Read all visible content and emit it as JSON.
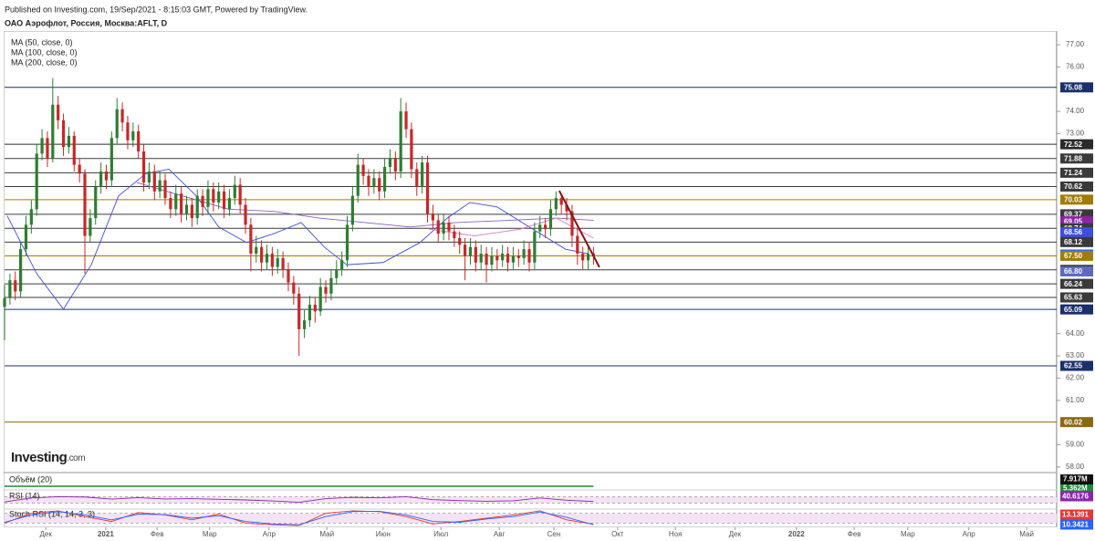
{
  "chart_data": {
    "type": "candlestick",
    "source": "Published on Investing.com, 19/Sep/2021 - 8:15:03 GMT, Powered by TradingView.",
    "title": "ОАО Аэрофлот, Россия, Москва:AFLT, D",
    "watermark": [
      "Investing",
      ".com"
    ],
    "xlim": [
      0,
      196
    ],
    "ylim": [
      57.79,
      77.37
    ],
    "xticks": [
      {
        "value": 7.7,
        "label": "Дек"
      },
      {
        "value": 18.9,
        "label": "2021",
        "bold": true
      },
      {
        "value": 28.5,
        "label": "Фев"
      },
      {
        "value": 38.3,
        "label": "Мар"
      },
      {
        "value": 49.4,
        "label": "Апр"
      },
      {
        "value": 60.2,
        "label": "Май"
      },
      {
        "value": 70.7,
        "label": "Июн"
      },
      {
        "value": 81.5,
        "label": "Июл"
      },
      {
        "value": 92.4,
        "label": "Авг"
      },
      {
        "value": 102.6,
        "label": "Сен"
      },
      {
        "value": 114.5,
        "label": "Окт"
      },
      {
        "value": 125.3,
        "label": "Ноя"
      },
      {
        "value": 136.4,
        "label": "Дек"
      },
      {
        "value": 147.9,
        "label": "2022",
        "bold": true
      },
      {
        "value": 158.7,
        "label": "Фев"
      },
      {
        "value": 168.7,
        "label": "Мар"
      },
      {
        "value": 180.1,
        "label": "Апр"
      },
      {
        "value": 190.9,
        "label": "Май"
      }
    ],
    "yticks": [
      {
        "value": 77,
        "label": "77.00"
      },
      {
        "value": 76,
        "label": "76.00"
      },
      {
        "value": 74,
        "label": "74.00"
      },
      {
        "value": 73,
        "label": "73.00"
      },
      {
        "value": 64,
        "label": "64.00"
      },
      {
        "value": 63,
        "label": "63.00"
      },
      {
        "value": 62,
        "label": "62.00"
      },
      {
        "value": 61,
        "label": "61.00"
      },
      {
        "value": 59,
        "label": "59.00"
      },
      {
        "value": 58,
        "label": "58.00"
      }
    ],
    "up_color": "#2e7d32",
    "down_color": "#c62828",
    "candles": {
      "open": [
        65.2,
        65.6,
        66.4,
        65.9,
        67.8,
        68.9,
        69.6,
        72.1,
        72.8,
        71.9,
        74.3,
        73.6,
        72.4,
        72.9,
        71.6,
        71.2,
        68.4,
        69.2,
        70.6,
        71.3,
        70.9,
        72.8,
        74.1,
        73.5,
        72.7,
        73.1,
        72.2,
        70.8,
        71.3,
        70.4,
        70.9,
        70.1,
        69.6,
        70.3,
        69.4,
        69.8,
        69.2,
        70.2,
        69.7,
        70.5,
        69.9,
        70.4,
        69.6,
        70.1,
        70.7,
        69.8,
        68.9,
        67.6,
        67.9,
        67.2,
        67.6,
        67.0,
        67.4,
        66.9,
        66.3,
        65.8,
        64.2,
        64.6,
        65.3,
        65.0,
        66.1,
        65.8,
        66.5,
        66.9,
        67.3,
        68.9,
        70.2,
        71.6,
        71.1,
        70.6,
        71.0,
        70.4,
        71.5,
        71.9,
        71.3,
        74.0,
        73.2,
        71.4,
        70.6,
        71.7,
        69.4,
        69.1,
        68.5,
        69.0,
        68.6,
        68.3,
        68.0,
        67.5,
        67.9,
        67.2,
        67.6,
        67.1,
        67.5,
        67.3,
        67.6,
        67.2,
        67.5,
        67.4,
        67.8,
        67.2,
        68.6,
        68.9,
        68.7,
        69.6,
        70.1,
        69.8,
        69.5,
        68.4,
        67.6,
        67.3,
        67.6
      ],
      "high": [
        66.2,
        66.7,
        66.8,
        68.1,
        69.3,
        70.0,
        72.5,
        73.2,
        73.1,
        75.5,
        74.7,
        73.9,
        73.3,
        73.1,
        71.9,
        71.4,
        69.6,
        70.9,
        71.7,
        71.6,
        73.1,
        74.6,
        74.4,
        73.8,
        73.5,
        73.4,
        72.5,
        71.7,
        71.6,
        71.3,
        71.2,
        70.4,
        70.7,
        70.6,
        70.2,
        70.1,
        70.5,
        70.5,
        70.9,
        70.8,
        70.8,
        70.7,
        70.5,
        71.1,
        71.0,
        70.1,
        69.2,
        68.4,
        68.2,
        68.0,
        67.9,
        67.8,
        67.7,
        67.2,
        66.6,
        66.1,
        65.1,
        65.7,
        65.6,
        66.5,
        66.4,
        66.9,
        67.3,
        67.7,
        69.3,
        70.6,
        72.1,
        71.9,
        71.4,
        71.4,
        71.3,
        71.9,
        72.3,
        72.2,
        74.6,
        74.4,
        73.5,
        71.7,
        72.0,
        72.0,
        69.8,
        69.4,
        69.4,
        69.3,
        68.9,
        68.6,
        68.3,
        68.3,
        68.2,
        68.0,
        67.9,
        67.9,
        67.8,
        68.0,
        67.9,
        67.9,
        67.8,
        68.2,
        68.1,
        69.0,
        69.3,
        69.2,
        70.0,
        70.4,
        70.3,
        70.1,
        69.8,
        68.7,
        67.9,
        67.9,
        67.9
      ],
      "low": [
        63.7,
        65.3,
        65.5,
        65.6,
        67.5,
        68.5,
        69.3,
        71.8,
        71.5,
        71.7,
        73.2,
        72.0,
        72.1,
        71.3,
        70.8,
        66.7,
        68.1,
        68.9,
        70.3,
        70.5,
        70.6,
        72.5,
        73.1,
        72.3,
        72.4,
        71.9,
        70.4,
        70.5,
        70.0,
        70.1,
        69.8,
        69.2,
        69.3,
        69.0,
        69.1,
        68.8,
        68.9,
        69.3,
        69.4,
        69.5,
        69.6,
        69.2,
        69.3,
        69.8,
        69.4,
        68.5,
        66.8,
        67.2,
        66.8,
        66.9,
        66.6,
        66.7,
        66.5,
        65.9,
        65.3,
        63.0,
        63.8,
        64.3,
        64.5,
        64.8,
        65.4,
        65.5,
        66.2,
        66.6,
        67.0,
        68.6,
        69.9,
        70.7,
        70.2,
        70.3,
        70.0,
        70.1,
        71.2,
        70.9,
        71.0,
        72.8,
        71.0,
        70.2,
        70.3,
        69.0,
        68.7,
        68.1,
        68.2,
        68.2,
        67.9,
        67.6,
        66.4,
        67.1,
        66.8,
        66.9,
        66.3,
        66.8,
        66.9,
        67.0,
        66.8,
        66.9,
        67.0,
        67.1,
        66.8,
        66.9,
        68.3,
        68.3,
        68.4,
        69.3,
        69.4,
        69.1,
        67.9,
        67.1,
        66.9,
        66.9,
        67.1
      ],
      "close": [
        65.6,
        66.4,
        65.9,
        67.8,
        68.9,
        69.6,
        72.1,
        72.8,
        71.9,
        74.3,
        73.6,
        72.4,
        72.9,
        71.6,
        71.2,
        68.4,
        69.2,
        70.6,
        71.3,
        70.9,
        72.8,
        74.1,
        73.5,
        72.7,
        73.1,
        72.2,
        70.8,
        71.3,
        70.4,
        70.9,
        70.1,
        69.6,
        70.3,
        69.4,
        69.8,
        69.2,
        70.2,
        69.7,
        70.5,
        69.9,
        70.4,
        69.6,
        70.1,
        70.7,
        69.8,
        68.9,
        67.6,
        67.9,
        67.2,
        67.6,
        67.0,
        67.4,
        66.9,
        66.3,
        65.8,
        64.2,
        64.6,
        65.3,
        65.0,
        66.1,
        65.8,
        66.5,
        66.9,
        67.3,
        68.9,
        70.2,
        71.6,
        71.1,
        70.6,
        71.0,
        70.4,
        71.5,
        71.9,
        71.3,
        74.0,
        73.2,
        71.4,
        70.6,
        71.7,
        69.4,
        69.1,
        68.5,
        69.0,
        68.6,
        68.3,
        68.0,
        67.5,
        67.9,
        67.2,
        67.6,
        67.1,
        67.5,
        67.3,
        67.6,
        67.2,
        67.5,
        67.4,
        67.8,
        67.2,
        68.6,
        68.9,
        68.7,
        69.6,
        70.1,
        69.8,
        69.5,
        68.4,
        67.6,
        67.3,
        67.6,
        67.5
      ]
    },
    "series": [
      {
        "name": "MA (50, close, 0)",
        "color": "#3d4fd6",
        "x": [
          0.5,
          6,
          11,
          16.2,
          21.3,
          26.4,
          30.7,
          35.8,
          40,
          45.2,
          50.3,
          55.4,
          59.7,
          63.9,
          70.7,
          77.6,
          82.7,
          86.9,
          92,
          98,
          104.8,
          109
        ],
        "values": [
          69.3,
          66.7,
          65.1,
          67.1,
          70.2,
          71.2,
          71.4,
          70.2,
          68.8,
          68.1,
          68.5,
          69.0,
          67.9,
          67.1,
          67.2,
          68.1,
          69.2,
          69.9,
          69.7,
          68.8,
          67.8,
          67.6
        ]
      },
      {
        "name": "MA (100, close, 0)",
        "color": "#8e5cc7",
        "x": [
          24.7,
          33.2,
          41.8,
          50.3,
          58.8,
          67.3,
          75.8,
          84.4,
          94.6,
          103.1,
          110
        ],
        "values": [
          70.8,
          70.2,
          69.6,
          69.5,
          69.2,
          69.0,
          68.8,
          69.0,
          69.1,
          69.2,
          69.1
        ]
      },
      {
        "name": "MA (200, close, 0)",
        "color": "#d77bc4",
        "x": [
          79.3,
          87.8,
          96.3,
          103,
          110
        ],
        "values": [
          68.7,
          68.4,
          68.7,
          69.2,
          68.3
        ]
      }
    ],
    "trend_line": {
      "color": "#8b1010",
      "x": [
        103.6,
        111.1
      ],
      "values": [
        70.43,
        66.99
      ]
    },
    "levels": [
      {
        "value": 75.08,
        "color": "#1b2f6b",
        "line": true
      },
      {
        "value": 72.52,
        "color": "#2a2a2a",
        "line": true
      },
      {
        "value": 71.88,
        "color": "#3a3a3a",
        "line": true
      },
      {
        "value": 71.24,
        "color": "#3a3a3a",
        "line": true
      },
      {
        "value": 70.62,
        "color": "#3a3a3a",
        "line": true
      },
      {
        "value": 70.03,
        "color": "#a07d00",
        "line": true
      },
      {
        "value": 69.37,
        "color": "#3a3a3a",
        "line": true
      },
      {
        "value": 69.05,
        "color": "#8e24aa",
        "line": false
      },
      {
        "value": 68.74,
        "color": "#3a3a3a",
        "line": true
      },
      {
        "value": 68.56,
        "color": "#3d4fd6",
        "line": false
      },
      {
        "value": 68.12,
        "color": "#3a3a3a",
        "line": true
      },
      {
        "value": 67.56,
        "color": "#2962ff",
        "line": false
      },
      {
        "value": 67.5,
        "label": "67.50",
        "color": "#a07d00",
        "line": true
      },
      {
        "value": 66.87,
        "color": "#3a3a3a",
        "line": true
      },
      {
        "value": 66.8,
        "label": "66.80",
        "color": "#5c6bc0",
        "line": false
      },
      {
        "value": 66.24,
        "color": "#3a3a3a",
        "line": true
      },
      {
        "value": 65.63,
        "color": "#3a3a3a",
        "line": true
      },
      {
        "value": 65.09,
        "color": "#1b2f6b",
        "line": true
      },
      {
        "value": 62.55,
        "color": "#1b2f6b",
        "line": true
      },
      {
        "value": 60.02,
        "color": "#8b6914",
        "line": true
      }
    ],
    "indicators": {
      "x": [
        0,
        5,
        10,
        15,
        20,
        25,
        30,
        35,
        40,
        45,
        50,
        55,
        60,
        65,
        70,
        75,
        80,
        85,
        90,
        95,
        100,
        105,
        110
      ],
      "volume": {
        "name": "Объём (20)",
        "last": {
          "value": 7917000,
          "label": "7.917M"
        },
        "ma_last": {
          "value": 5362000,
          "label": "5.362M"
        },
        "color": "#1b8a3a"
      },
      "rsi": {
        "name": "RSI (14)",
        "color": "#8e24aa",
        "ylim": [
          0,
          100
        ],
        "bands": [
          30,
          70
        ],
        "values": [
          38,
          62,
          70,
          68,
          55,
          64,
          56,
          58,
          54,
          50,
          44,
          36,
          58,
          66,
          63,
          70,
          52,
          46,
          42,
          45,
          62,
          48,
          40.6176
        ]
      },
      "stoch": {
        "name": "Stoch RSI (14, 14, 3, 3)",
        "ylim": [
          0,
          100
        ],
        "bands": [
          20,
          80
        ],
        "series": [
          {
            "color": "#e53935",
            "values": [
              20,
              80,
              95,
              60,
              30,
              85,
              70,
              40,
              75,
              20,
              10,
              5,
              80,
              95,
              90,
              60,
              15,
              30,
              50,
              70,
              95,
              40,
              13.1391
            ]
          },
          {
            "color": "#2962ff",
            "values": [
              25,
              70,
              90,
              70,
              40,
              75,
              72,
              50,
              65,
              30,
              15,
              10,
              60,
              90,
              92,
              70,
              30,
              25,
              45,
              60,
              88,
              55,
              10.3421
            ]
          }
        ]
      }
    }
  }
}
